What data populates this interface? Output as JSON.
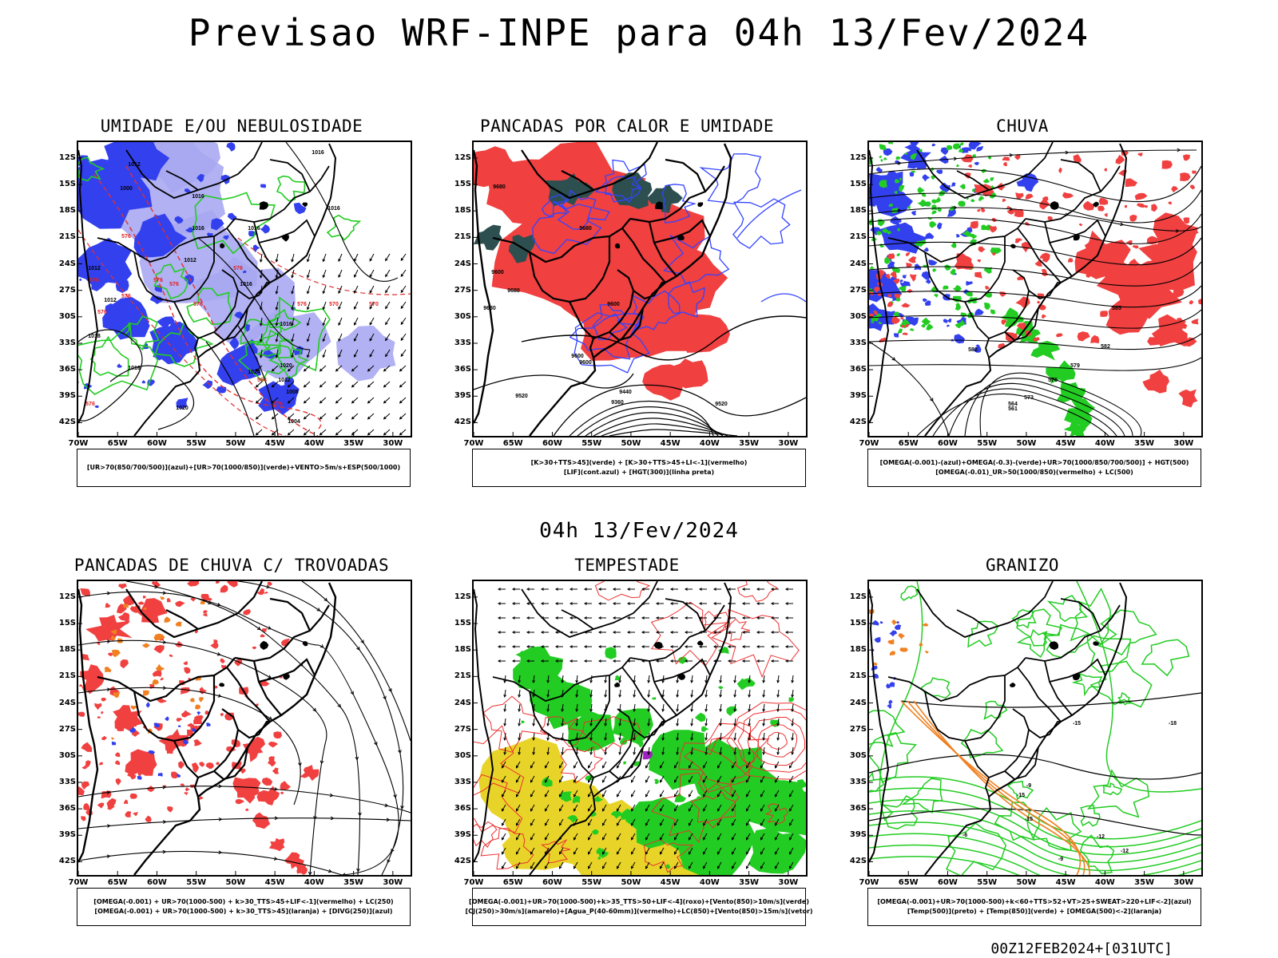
{
  "header": {
    "title": "Previsao WRF-INPE  para 04h 13/Fev/2024"
  },
  "row2": {
    "title": "04h 13/Fev/2024"
  },
  "footer": {
    "stamp": "00Z12FEB2024+[031UTC]"
  },
  "axes": {
    "lat_ticks": [
      "12S",
      "15S",
      "18S",
      "21S",
      "24S",
      "27S",
      "30S",
      "33S",
      "36S",
      "39S",
      "42S"
    ],
    "lon_ticks": [
      "70W",
      "65W",
      "60W",
      "55W",
      "50W",
      "45W",
      "40W",
      "35W",
      "30W"
    ]
  },
  "colors": {
    "humid_blue": "#3340ee",
    "light_blue": "#a8a8f2",
    "green": "#22cc22",
    "red": "#f04040",
    "dark_teal": "#2d4f4f",
    "yellow": "#e8d428",
    "orange": "#f08020",
    "purple": "#a020c0"
  },
  "chart_data": [
    {
      "type": "map",
      "title": "UMIDADE E/OU NEBULOSIDADE",
      "legend": [
        "[UR>70(850/700/500)](azul)+[UR>70(1000/850)](verde)+VENTO>5m/s+ESP(500/1000)"
      ],
      "contour_labels": [
        "1012",
        "1016",
        "1016",
        "1016",
        "1016",
        "1016",
        "1012",
        "1012",
        "1016",
        "1012",
        "1016",
        "1018",
        "1016",
        "1020",
        "1024",
        "1020",
        "1012",
        "1008",
        "1004",
        "1000",
        "576",
        "576",
        "576",
        "576",
        "570",
        "576",
        "576",
        "576",
        "576",
        "576",
        "570",
        "564",
        "576",
        "576"
      ]
    },
    {
      "type": "map",
      "title": "PANCADAS POR CALOR E UMIDADE",
      "legend": [
        "[K>30+TTS>45](verde) + [K>30+TTS>45+LI<-1](vermelho)",
        "[LIF](cont.azul) + [HGT(300)](linha preta)"
      ],
      "contour_labels": [
        "9680",
        "9680",
        "9600",
        "9680",
        "9600",
        "9680",
        "9600",
        "9600",
        "9520",
        "9440",
        "9360",
        "9520"
      ]
    },
    {
      "type": "map",
      "title": "CHUVA",
      "legend": [
        "[OMEGA(-0.001)-(azul)+OMEGA(-0.3)-(verde)+UR>70(1000/850/700/500)] + HGT(500)",
        "[OMEGA(-0.01)_UR>50(1000/850)(vermelho) + LC(500)"
      ],
      "contour_labels": [
        "585",
        "582",
        "582",
        "579",
        "576",
        "573",
        "564",
        "561"
      ]
    },
    {
      "type": "map",
      "title": "PANCADAS DE CHUVA C/ TROVOADAS",
      "legend": [
        "[OMEGA(-0.001) + UR>70(1000-500) + k>30_TTS>45+LIF<-1](vermelho) + LC(250)",
        "[OMEGA(-0.001) + UR>70(1000-500) + k>30_TTS>45](laranja) + [DIVG(250)](azul)"
      ],
      "contour_labels": []
    },
    {
      "type": "map",
      "title": "TEMPESTADE",
      "legend": [
        "[OMEGA(-0.001)+UR>70(1000-500)+k>35_TTS>50+LIF<-4](roxo)+[Vento(850)>10m/s](verde)",
        "[CJ(250)>30m/s](amarelo)+[Agua_P(40-60mm)](vermelho)+LC(850)+[Vento(850)>15m/s](vetor)"
      ],
      "contour_labels": []
    },
    {
      "type": "map",
      "title": "GRANIZO",
      "legend": [
        "[OMEGA(-0.001)+UR>70(1000-500)+k<60+TTS>52+VT>25+SWEAT>220+LIF<-2](azul)",
        "[Temp(500)](preto) + [Temp(850)](verde) + [OMEGA(500)<-2](laranja)"
      ],
      "contour_labels": [
        "-15",
        "-15",
        "-18",
        "-15",
        "-12",
        "-12",
        "-9",
        "-9",
        "-6"
      ]
    }
  ]
}
